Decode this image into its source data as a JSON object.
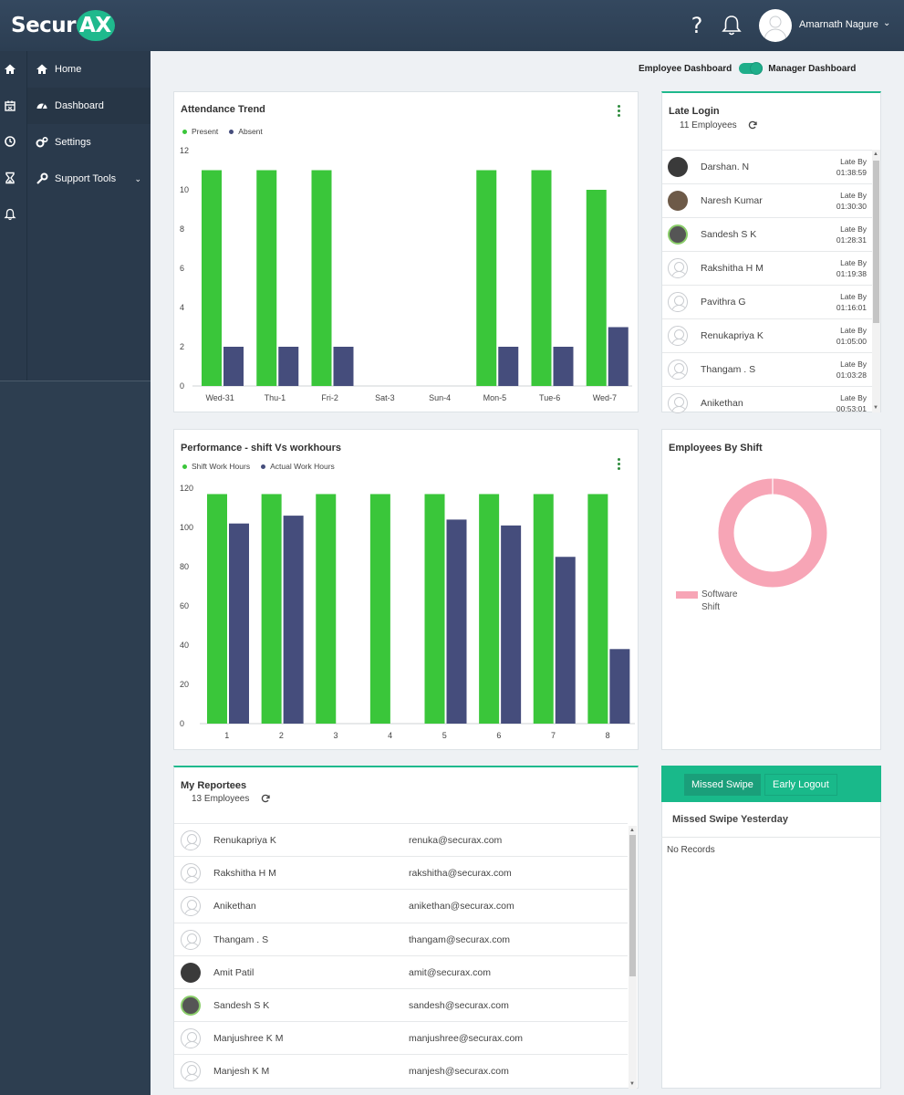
{
  "app": {
    "logo_text_1": "Secur",
    "logo_text_2": "AX"
  },
  "header": {
    "help_glyph": "?",
    "user_name": "Amarnath Nagure",
    "caret": "⌄"
  },
  "sidebar": {
    "items": [
      {
        "label": "Home",
        "icon": "home-icon"
      },
      {
        "label": "Dashboard",
        "icon": "dashboard-icon"
      },
      {
        "label": "Settings",
        "icon": "gears-icon"
      },
      {
        "label": "Support Tools",
        "icon": "wrench-icon",
        "chevron": "⌄"
      }
    ],
    "rail_icons": [
      "home-icon",
      "calendar-icon",
      "clock-icon",
      "hourglass-icon",
      "bell-icon"
    ]
  },
  "toggle": {
    "left_label": "Employee Dashboard",
    "right_label": "Manager Dashboard",
    "state": "Manager Dashboard"
  },
  "colors": {
    "present": "#3ac63a",
    "absent": "#454d7c",
    "donut": "#f7a5b6",
    "accent": "#1fb98d"
  },
  "attendance": {
    "title": "Attendance Trend",
    "chart_data": {
      "type": "bar",
      "categories": [
        "Wed-31",
        "Thu-1",
        "Fri-2",
        "Sat-3",
        "Sun-4",
        "Mon-5",
        "Tue-6",
        "Wed-7"
      ],
      "series": [
        {
          "name": "Present",
          "values": [
            11,
            11,
            11,
            0,
            0,
            11,
            11,
            10
          ]
        },
        {
          "name": "Absent",
          "values": [
            2,
            2,
            2,
            0,
            0,
            2,
            2,
            3
          ]
        }
      ],
      "ylim": [
        0,
        12
      ],
      "yticks": [
        "0",
        "2",
        "4",
        "6",
        "8",
        "10",
        "12"
      ]
    }
  },
  "performance": {
    "title": "Performance - shift Vs workhours",
    "chart_data": {
      "type": "bar",
      "categories": [
        "1",
        "2",
        "3",
        "4",
        "5",
        "6",
        "7",
        "8"
      ],
      "series": [
        {
          "name": "Shift Work Hours",
          "values": [
            117,
            117,
            117,
            117,
            117,
            117,
            117,
            117
          ]
        },
        {
          "name": "Actual Work Hours",
          "values": [
            102,
            106,
            0,
            0,
            104,
            101,
            85,
            38
          ]
        }
      ],
      "ylim": [
        0,
        120
      ],
      "yticks": [
        "0",
        "20",
        "40",
        "60",
        "80",
        "100",
        "120"
      ]
    }
  },
  "late_login": {
    "title": "Late Login",
    "count": "11 Employees",
    "late_label": "Late By",
    "rows": [
      {
        "name": "Darshan. N",
        "time": "01:38:59",
        "avatar": "photo"
      },
      {
        "name": "Naresh Kumar",
        "time": "01:30:30",
        "avatar": "photo2"
      },
      {
        "name": "Sandesh S K",
        "time": "01:28:31",
        "avatar": "green"
      },
      {
        "name": "Rakshitha H M",
        "time": "01:19:38",
        "avatar": "blank"
      },
      {
        "name": "Pavithra G",
        "time": "01:16:01",
        "avatar": "blank"
      },
      {
        "name": "Renukapriya K",
        "time": "01:05:00",
        "avatar": "blank"
      },
      {
        "name": "Thangam . S",
        "time": "01:03:28",
        "avatar": "blank"
      },
      {
        "name": "Anikethan",
        "time": "00:53:01",
        "avatar": "blank"
      }
    ]
  },
  "shift": {
    "title": "Employees By Shift",
    "chart_data": {
      "type": "pie",
      "categories": [
        "Software Shift"
      ],
      "values": [
        1
      ]
    },
    "legend_line1": "Software",
    "legend_line2": "Shift"
  },
  "reportees": {
    "title": "My Reportees",
    "count": "13 Employees",
    "rows": [
      {
        "name": "Renukapriya K",
        "email": "renuka@securax.com",
        "avatar": "blank"
      },
      {
        "name": "Rakshitha H M",
        "email": "rakshitha@securax.com",
        "avatar": "blank"
      },
      {
        "name": "Anikethan",
        "email": "anikethan@securax.com",
        "avatar": "blank"
      },
      {
        "name": "Thangam . S",
        "email": "thangam@securax.com",
        "avatar": "blank"
      },
      {
        "name": "Amit Patil",
        "email": "amit@securax.com",
        "avatar": "photo"
      },
      {
        "name": "Sandesh S K",
        "email": "sandesh@securax.com",
        "avatar": "green"
      },
      {
        "name": "Manjushree K M",
        "email": "manjushree@securax.com",
        "avatar": "blank"
      },
      {
        "name": "Manjesh K M",
        "email": "manjesh@securax.com",
        "avatar": "blank"
      }
    ]
  },
  "missed": {
    "tabs": [
      "Missed Swipe",
      "Early Logout"
    ],
    "selected_tab": "Missed Swipe",
    "heading": "Missed Swipe Yesterday",
    "empty": "No Records"
  }
}
